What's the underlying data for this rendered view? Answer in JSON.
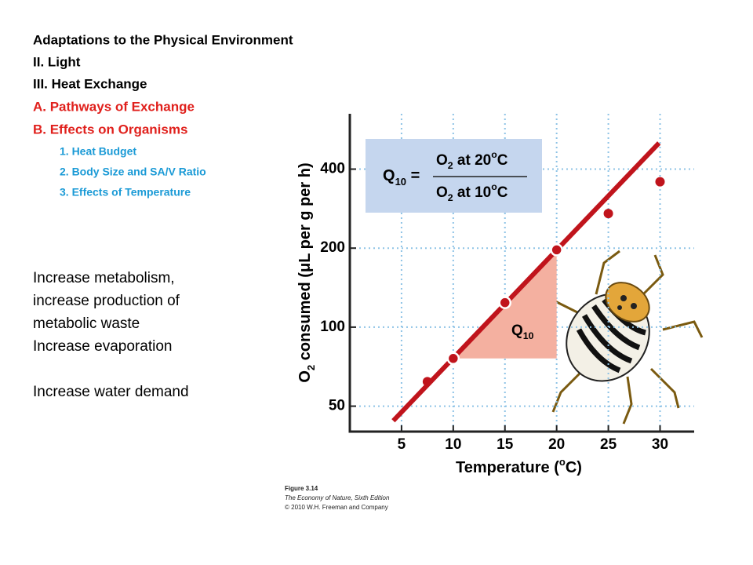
{
  "slide": {
    "outline": [
      {
        "text": "Adaptations to the Physical Environment",
        "color": "#000000",
        "level": 0
      },
      {
        "text": " II.  Light",
        "color": "#000000",
        "level": 0
      },
      {
        "text": "III. Heat Exchange",
        "color": "#000000",
        "level": 0
      },
      {
        "text": "A.   Pathways of Exchange",
        "color": "#e0201c",
        "level": 0
      },
      {
        "text": "B.   Effects on Organisms",
        "color": "#e0201c",
        "level": 0
      },
      {
        "text": "1. Heat Budget",
        "color": "#1a9ad6",
        "level": 1
      },
      {
        "text": "2. Body Size and SA/V Ratio",
        "color": "#1a9ad6",
        "level": 1
      },
      {
        "text": "3. Effects of Temperature",
        "color": "#1a9ad6",
        "level": 1
      }
    ],
    "body": [
      "Increase metabolism,",
      "increase production of",
      "metabolic waste",
      "Increase evaporation",
      "",
      "Increase water demand"
    ],
    "caption": [
      "Figure 3.14",
      "The Economy of Nature, Sixth Edition",
      "© 2010 W.H. Freeman and Company"
    ]
  },
  "chart_data": {
    "type": "scatter",
    "x": [
      7.5,
      10,
      15,
      20,
      25,
      30
    ],
    "values": [
      62,
      76,
      124,
      197,
      271,
      358
    ],
    "outlined": [
      false,
      true,
      true,
      true,
      false,
      false
    ],
    "color": "#c0141c",
    "trend": {
      "x": [
        4.2,
        29.9
      ],
      "values": [
        44,
        503
      ],
      "color": "#c0141c"
    },
    "triangle_color": "#f4b0a0",
    "triangle_label": [
      "Q",
      "10"
    ],
    "formula": {
      "lhs": [
        "Q",
        "10",
        " ="
      ],
      "numerator": [
        "O",
        "2",
        " at 20",
        "o",
        "C"
      ],
      "denominator": [
        "O",
        "2",
        " at 10",
        "o",
        "C"
      ]
    },
    "x_label": [
      "Temperature (",
      "o",
      "C)"
    ],
    "y_label": [
      "O",
      "2",
      " consumed (",
      "μ",
      "L per g per h)"
    ],
    "xlim": [
      0,
      33.3
    ],
    "xticks": [
      5,
      10,
      15,
      20,
      25,
      30
    ],
    "ylim": [
      40,
      650
    ],
    "yticks": [
      50,
      100,
      200,
      400
    ],
    "log_y": true,
    "grid": true
  }
}
